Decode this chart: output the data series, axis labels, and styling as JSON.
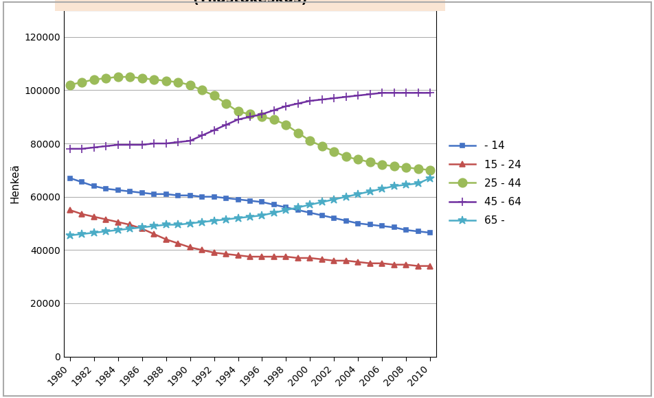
{
  "ylabel": "Henkeä",
  "years": [
    1980,
    1981,
    1982,
    1983,
    1984,
    1985,
    1986,
    1987,
    1988,
    1989,
    1990,
    1991,
    1992,
    1993,
    1994,
    1995,
    1996,
    1997,
    1998,
    1999,
    2000,
    2001,
    2002,
    2003,
    2004,
    2005,
    2006,
    2007,
    2008,
    2009,
    2010
  ],
  "series_order": [
    "- 14",
    "15 - 24",
    "25 - 44",
    "45 - 64",
    "65 -"
  ],
  "series": {
    "- 14": {
      "values": [
        67000,
        65500,
        64000,
        63000,
        62500,
        62000,
        61500,
        61000,
        61000,
        60500,
        60500,
        60000,
        60000,
        59500,
        59000,
        58500,
        58000,
        57000,
        56000,
        55000,
        54000,
        53000,
        52000,
        51000,
        50000,
        49500,
        49000,
        48500,
        47500,
        47000,
        46500
      ],
      "color": "#4472C4",
      "marker": "s",
      "markersize": 5
    },
    "15 - 24": {
      "values": [
        55000,
        53500,
        52500,
        51500,
        50500,
        49500,
        48000,
        46000,
        44000,
        42500,
        41000,
        40000,
        39000,
        38500,
        38000,
        37500,
        37500,
        37500,
        37500,
        37000,
        37000,
        36500,
        36000,
        36000,
        35500,
        35000,
        35000,
        34500,
        34500,
        34000,
        34000
      ],
      "color": "#C0504D",
      "marker": "^",
      "markersize": 6
    },
    "25 - 44": {
      "values": [
        102000,
        103000,
        104000,
        104500,
        105000,
        105000,
        104500,
        104000,
        103500,
        103000,
        102000,
        100000,
        98000,
        95000,
        92000,
        91000,
        90000,
        89000,
        87000,
        84000,
        81000,
        79000,
        77000,
        75000,
        74000,
        73000,
        72000,
        71500,
        71000,
        70500,
        70000
      ],
      "color": "#9BBB59",
      "marker": "o",
      "markersize": 9
    },
    "45 - 64": {
      "values": [
        78000,
        78000,
        78500,
        79000,
        79500,
        79500,
        79500,
        80000,
        80000,
        80500,
        81000,
        83000,
        85000,
        87000,
        89000,
        90000,
        91000,
        92500,
        94000,
        95000,
        96000,
        96500,
        97000,
        97500,
        98000,
        98500,
        99000,
        99000,
        99000,
        99000,
        99000
      ],
      "color": "#7030A0",
      "marker": "+",
      "markersize": 8
    },
    "65 -": {
      "values": [
        45500,
        46000,
        46500,
        47000,
        47500,
        48000,
        48500,
        49000,
        49500,
        49500,
        50000,
        50500,
        51000,
        51500,
        52000,
        52500,
        53000,
        54000,
        55000,
        56000,
        57000,
        58000,
        59000,
        60000,
        61000,
        62000,
        63000,
        64000,
        64500,
        65000,
        67000
      ],
      "color": "#4BACC6",
      "marker": "*",
      "markersize": 9
    }
  },
  "ylim": [
    0,
    130000
  ],
  "yticks": [
    0,
    20000,
    40000,
    60000,
    80000,
    100000,
    120000
  ],
  "xtick_step": 2,
  "figure_bg_color": "#FFFFFF",
  "plot_bg_color": "#FFFFFF",
  "title_bg_color": "#FAE5D3",
  "outer_border_color": "#AAAAAA",
  "title_fontsize": 14,
  "axis_fontsize": 10,
  "legend_fontsize": 11,
  "linewidth": 1.8
}
